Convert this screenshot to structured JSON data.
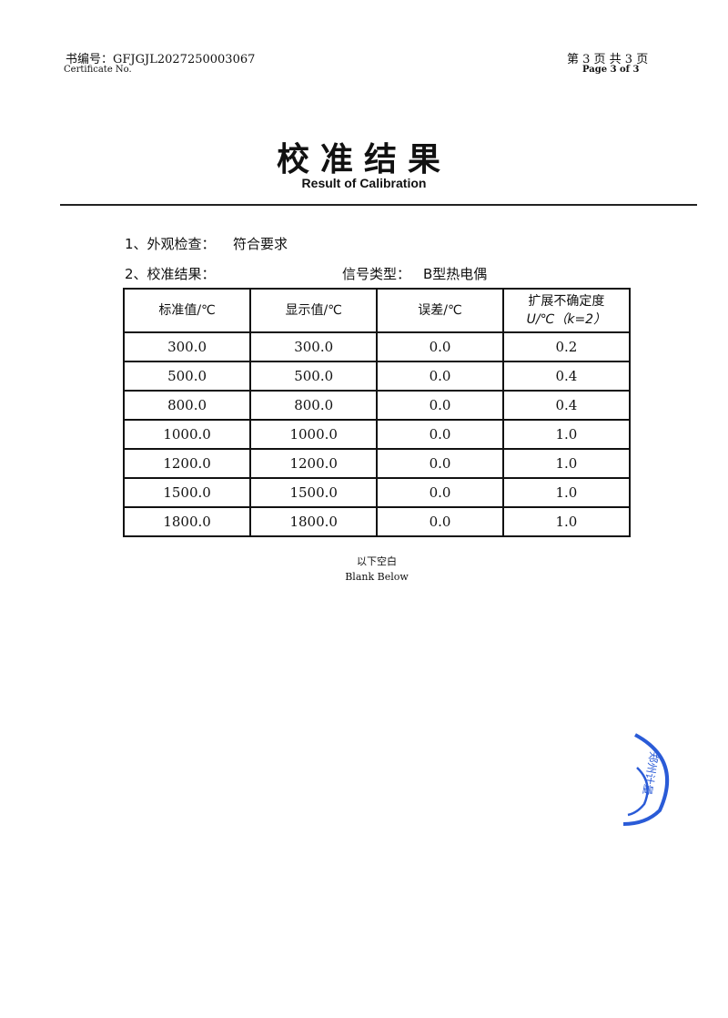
{
  "header": {
    "cert_no_label": "书编号：",
    "cert_no": "GFJGJL2027250003067",
    "cert_no_en": "Certificate No.",
    "page_cn": "第 3 页  共 3 页",
    "page_en": "Page 3  of  3"
  },
  "title": "校准结果",
  "subtitle": "Result of Calibration",
  "section1": {
    "label": "1、外观检查：",
    "value": "符合要求"
  },
  "section2": {
    "label": "2、校准结果：",
    "signal_label": "信号类型：",
    "signal_value": "B型热电偶"
  },
  "table": {
    "headers": [
      "标准值/℃",
      "显示值/℃",
      "误差/℃",
      "扩展不确定度"
    ],
    "header4_line2": "U/℃（k=2）",
    "rows": [
      [
        "300.0",
        "300.0",
        "0.0",
        "0.2"
      ],
      [
        "500.0",
        "500.0",
        "0.0",
        "0.4"
      ],
      [
        "800.0",
        "800.0",
        "0.0",
        "0.4"
      ],
      [
        "1000.0",
        "1000.0",
        "0.0",
        "1.0"
      ],
      [
        "1200.0",
        "1200.0",
        "0.0",
        "1.0"
      ],
      [
        "1500.0",
        "1500.0",
        "0.0",
        "1.0"
      ],
      [
        "1800.0",
        "1800.0",
        "0.0",
        "1.0"
      ]
    ]
  },
  "footer": {
    "blank_cn": "以下空白",
    "blank_en": "Blank Below"
  },
  "stamp": {
    "text": "郑州计量",
    "color": "#2a5bd7"
  }
}
